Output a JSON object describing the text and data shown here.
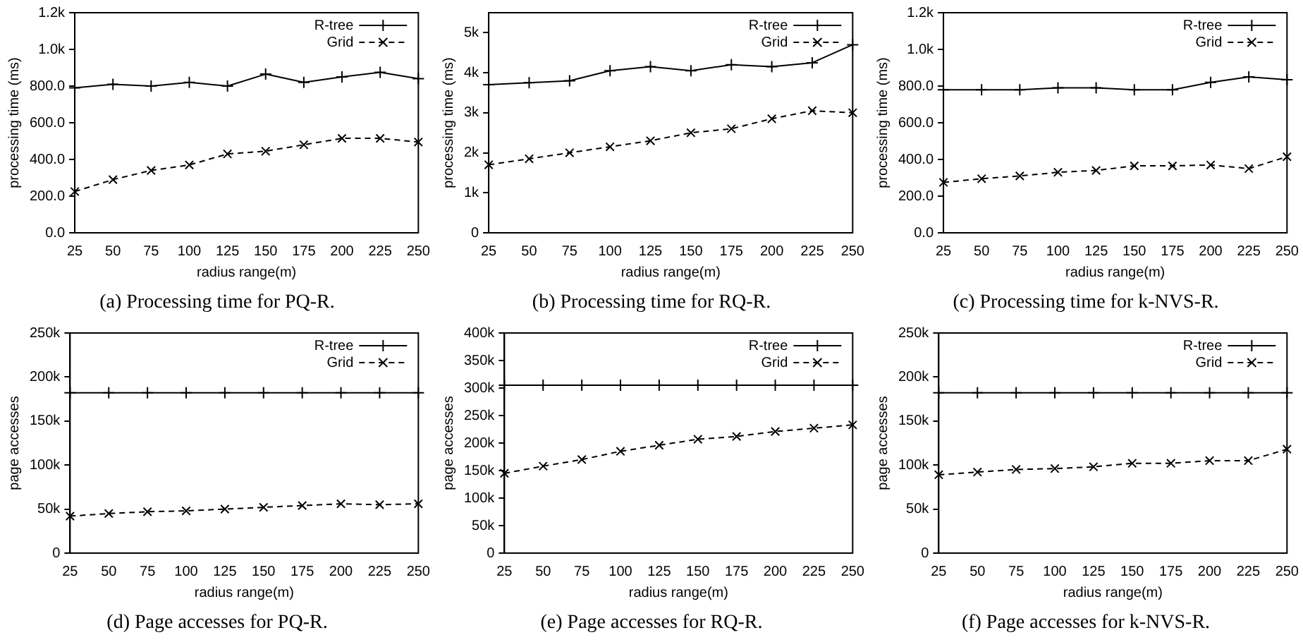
{
  "chart_data": [
    {
      "type": "line",
      "title": "(a) Processing time for PQ-R.",
      "xlabel": "radius range(m)",
      "ylabel": "processing time (ms)",
      "legend": "top right",
      "categories": [
        "25",
        "50",
        "75",
        "100",
        "125",
        "150",
        "175",
        "200",
        "225",
        "250"
      ],
      "ylim": [
        0,
        1200
      ],
      "yticks": [
        {
          "value": 0,
          "label": "0.0"
        },
        {
          "value": 200,
          "label": "200.0"
        },
        {
          "value": 400,
          "label": "400.0"
        },
        {
          "value": 600,
          "label": "600.0"
        },
        {
          "value": 800,
          "label": "800.0"
        },
        {
          "value": 1000,
          "label": "1.0k"
        },
        {
          "value": 1200,
          "label": "1.2k"
        }
      ],
      "series": [
        {
          "name": "R-tree",
          "color": "#000000",
          "marker": "cross",
          "line_style": "solid",
          "values": [
            790,
            810,
            800,
            820,
            800,
            865,
            820,
            850,
            875,
            840
          ]
        },
        {
          "name": "Grid",
          "color": "#000000",
          "marker": "cross",
          "line_style": "dashed",
          "values": [
            225,
            290,
            340,
            370,
            430,
            445,
            480,
            515,
            515,
            495
          ]
        }
      ]
    },
    {
      "type": "line",
      "title": "(b) Processing time for RQ-R.",
      "xlabel": "radius range(m)",
      "ylabel": "processing time (ms)",
      "legend": "top right",
      "categories": [
        "25",
        "50",
        "75",
        "100",
        "125",
        "150",
        "175",
        "200",
        "225",
        "250"
      ],
      "ylim": [
        0,
        5500
      ],
      "yticks": [
        {
          "value": 0,
          "label": "0"
        },
        {
          "value": 1000,
          "label": "1k"
        },
        {
          "value": 2000,
          "label": "2k"
        },
        {
          "value": 3000,
          "label": "3k"
        },
        {
          "value": 4000,
          "label": "4k"
        },
        {
          "value": 5000,
          "label": "5k"
        }
      ],
      "series": [
        {
          "name": "R-tree",
          "color": "#000000",
          "marker": "cross",
          "line_style": "solid",
          "values": [
            3700,
            3750,
            3800,
            4050,
            4150,
            4050,
            4200,
            4150,
            4250,
            4700
          ]
        },
        {
          "name": "Grid",
          "color": "#000000",
          "marker": "cross",
          "line_style": "dashed",
          "values": [
            1700,
            1850,
            2000,
            2150,
            2300,
            2500,
            2600,
            2850,
            3050,
            3000
          ]
        }
      ]
    },
    {
      "type": "line",
      "title": "(c) Processing time for k-NVS-R.",
      "xlabel": "radius range(m)",
      "ylabel": "processing time (ms)",
      "legend": "top right",
      "categories": [
        "25",
        "50",
        "75",
        "100",
        "125",
        "150",
        "175",
        "200",
        "225",
        "250"
      ],
      "ylim": [
        0,
        1200
      ],
      "yticks": [
        {
          "value": 0,
          "label": "0.0"
        },
        {
          "value": 200,
          "label": "200.0"
        },
        {
          "value": 400,
          "label": "400.0"
        },
        {
          "value": 600,
          "label": "600.0"
        },
        {
          "value": 800,
          "label": "800.0"
        },
        {
          "value": 1000,
          "label": "1.0k"
        },
        {
          "value": 1200,
          "label": "1.2k"
        }
      ],
      "series": [
        {
          "name": "R-tree",
          "color": "#000000",
          "marker": "cross",
          "line_style": "solid",
          "values": [
            780,
            780,
            780,
            790,
            790,
            780,
            780,
            820,
            850,
            835
          ]
        },
        {
          "name": "Grid",
          "color": "#000000",
          "marker": "cross",
          "line_style": "dashed",
          "values": [
            275,
            295,
            310,
            330,
            340,
            365,
            365,
            370,
            350,
            415
          ]
        }
      ]
    },
    {
      "type": "line",
      "title": "(d) Page accesses for PQ-R.",
      "xlabel": "radius range(m)",
      "ylabel": "page accesses",
      "legend": "top right",
      "categories": [
        "25",
        "50",
        "75",
        "100",
        "125",
        "150",
        "175",
        "200",
        "225",
        "250"
      ],
      "ylim": [
        0,
        250000
      ],
      "yticks": [
        {
          "value": 0,
          "label": "0"
        },
        {
          "value": 50000,
          "label": "50k"
        },
        {
          "value": 100000,
          "label": "100k"
        },
        {
          "value": 150000,
          "label": "150k"
        },
        {
          "value": 200000,
          "label": "200k"
        },
        {
          "value": 250000,
          "label": "250k"
        }
      ],
      "series": [
        {
          "name": "R-tree",
          "color": "#000000",
          "marker": "cross",
          "line_style": "solid",
          "values": [
            182000,
            182000,
            182000,
            182000,
            182000,
            182000,
            182000,
            182000,
            182000,
            182000
          ]
        },
        {
          "name": "Grid",
          "color": "#000000",
          "marker": "cross",
          "line_style": "dashed",
          "values": [
            42000,
            45000,
            47000,
            48000,
            50000,
            52000,
            54000,
            56000,
            55000,
            56000
          ]
        }
      ]
    },
    {
      "type": "line",
      "title": "(e) Page accesses for RQ-R.",
      "xlabel": "radius range(m)",
      "ylabel": "page accesses",
      "legend": "top right",
      "categories": [
        "25",
        "50",
        "75",
        "100",
        "125",
        "150",
        "175",
        "200",
        "225",
        "250"
      ],
      "ylim": [
        0,
        400000
      ],
      "yticks": [
        {
          "value": 0,
          "label": "0"
        },
        {
          "value": 50000,
          "label": "50k"
        },
        {
          "value": 100000,
          "label": "100k"
        },
        {
          "value": 150000,
          "label": "150k"
        },
        {
          "value": 200000,
          "label": "200k"
        },
        {
          "value": 250000,
          "label": "250k"
        },
        {
          "value": 300000,
          "label": "300k"
        },
        {
          "value": 350000,
          "label": "350k"
        },
        {
          "value": 400000,
          "label": "400k"
        }
      ],
      "series": [
        {
          "name": "R-tree",
          "color": "#000000",
          "marker": "cross",
          "line_style": "solid",
          "values": [
            305000,
            305000,
            305000,
            305000,
            305000,
            305000,
            305000,
            305000,
            305000,
            305000
          ]
        },
        {
          "name": "Grid",
          "color": "#000000",
          "marker": "cross",
          "line_style": "dashed",
          "values": [
            145000,
            158000,
            170000,
            185000,
            196000,
            207000,
            212000,
            221000,
            227000,
            233000
          ]
        }
      ]
    },
    {
      "type": "line",
      "title": "(f) Page accesses for k-NVS-R.",
      "xlabel": "radius range(m)",
      "ylabel": "page accesses",
      "legend": "top right",
      "categories": [
        "25",
        "50",
        "75",
        "100",
        "125",
        "150",
        "175",
        "200",
        "225",
        "250"
      ],
      "ylim": [
        0,
        250000
      ],
      "yticks": [
        {
          "value": 0,
          "label": "0"
        },
        {
          "value": 50000,
          "label": "50k"
        },
        {
          "value": 100000,
          "label": "100k"
        },
        {
          "value": 150000,
          "label": "150k"
        },
        {
          "value": 200000,
          "label": "200k"
        },
        {
          "value": 250000,
          "label": "250k"
        }
      ],
      "series": [
        {
          "name": "R-tree",
          "color": "#000000",
          "marker": "cross",
          "line_style": "solid",
          "values": [
            182000,
            182000,
            182000,
            182000,
            182000,
            182000,
            182000,
            182000,
            182000,
            182000
          ]
        },
        {
          "name": "Grid",
          "color": "#000000",
          "marker": "cross",
          "line_style": "dashed",
          "values": [
            89000,
            92000,
            95000,
            96000,
            98000,
            102000,
            102000,
            105000,
            105000,
            118000
          ]
        }
      ]
    }
  ]
}
